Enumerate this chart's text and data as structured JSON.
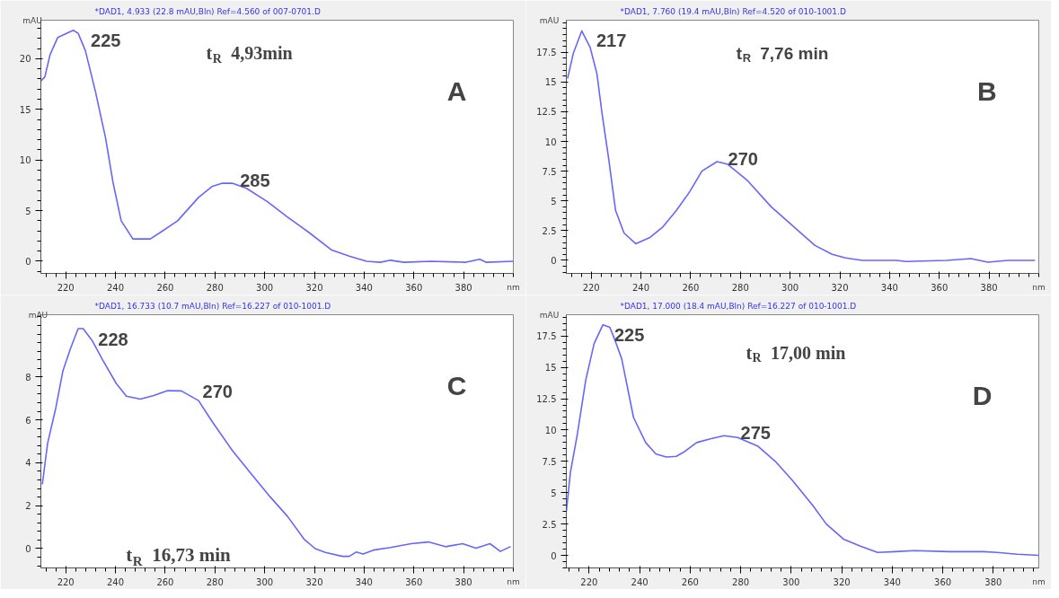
{
  "chart_data": [
    {
      "type": "line",
      "title": "*DAD1, 4.933 (22.8 mAU,Bln) Ref=4.560 of 007-0701.D",
      "xlabel": "nm",
      "ylabel": "mAU",
      "xlim": [
        210,
        400
      ],
      "xticks": [
        220,
        240,
        260,
        280,
        300,
        320,
        340,
        360,
        380
      ],
      "ylim": [
        -1.2,
        23.8
      ],
      "yticks": [
        0,
        5,
        10,
        15,
        20
      ],
      "grid": false,
      "x": [
        210,
        211.6,
        213.7,
        216.8,
        223,
        225,
        227.9,
        232,
        236,
        239,
        242.3,
        247,
        254,
        259.6,
        265,
        273.4,
        279,
        283,
        287,
        292.7,
        301,
        309,
        317.5,
        327,
        334,
        341,
        346.5,
        350.6,
        356,
        367,
        381,
        386.5,
        389,
        400
      ],
      "series": [
        {
          "color": "#6666ff",
          "values": [
            17.8,
            18.2,
            20.4,
            22.1,
            22.8,
            22.5,
            20.8,
            16.7,
            12.2,
            7.8,
            4.0,
            2.2,
            2.2,
            3.1,
            4.0,
            6.3,
            7.4,
            7.7,
            7.7,
            7.2,
            5.9,
            4.4,
            2.9,
            1.1,
            0.5,
            0,
            -0.1,
            0.1,
            -0.1,
            0,
            -0.1,
            0.2,
            -0.1,
            0
          ]
        }
      ],
      "annotations": [
        {
          "text": "225",
          "x": 225,
          "y": 22.8
        },
        {
          "text": "285",
          "x": 285,
          "y": 7.7
        },
        "t$_{R}$ 4,93min",
        "A"
      ]
    },
    {
      "type": "line",
      "title": "*DAD1, 7.760 (19.4 mAU,Bln) Ref=4.520 of 010-1001.D",
      "xlabel": "nm",
      "ylabel": "mAU",
      "xlim": [
        210,
        400
      ],
      "xticks": [
        220,
        240,
        260,
        280,
        300,
        320,
        340,
        360,
        380
      ],
      "ylim": [
        -1.1,
        20.2
      ],
      "yticks": [
        0,
        2.5,
        5,
        7.5,
        10,
        12.5,
        15,
        17.5
      ],
      "grid": false,
      "x": [
        210.5,
        212.8,
        216.2,
        219.6,
        222.3,
        224.4,
        227,
        229.8,
        233.2,
        237.9,
        243.4,
        248.8,
        254.3,
        259.7,
        264.5,
        270.6,
        274.7,
        282.9,
        292.4,
        300.5,
        310,
        316.9,
        322.3,
        329,
        342.7,
        346.8,
        363,
        372.7,
        379.5,
        387.6,
        398.5
      ],
      "series": [
        {
          "color": "#6666ff",
          "values": [
            15.3,
            17.4,
            19.3,
            17.9,
            15.7,
            12.3,
            8.6,
            4.2,
            2.3,
            1.4,
            1.9,
            2.8,
            4.2,
            5.8,
            7.5,
            8.3,
            8.1,
            6.7,
            4.5,
            3.0,
            1.25,
            0.5,
            0.2,
            0,
            0,
            -0.1,
            0,
            0.15,
            -0.15,
            0,
            0
          ]
        }
      ],
      "annotations": [
        {
          "text": "217",
          "x": 217,
          "y": 19.3
        },
        {
          "text": "270",
          "x": 270,
          "y": 8.3
        },
        "t$_{R}$ 7,76 min",
        "B"
      ]
    },
    {
      "type": "line",
      "title": "*DAD1, 16.733 (10.7 mAU,Bln) Ref=16.227 of 010-1001.D",
      "xlabel": "nm",
      "ylabel": "mAU",
      "xlim": [
        210,
        400
      ],
      "xticks": [
        220,
        240,
        260,
        280,
        300,
        320,
        340,
        360,
        380
      ],
      "ylim": [
        -0.9,
        10.9
      ],
      "yticks": [
        0,
        2,
        4,
        6,
        8
      ],
      "grid": false,
      "x": [
        210.6,
        212.7,
        216,
        218.9,
        222,
        225,
        227,
        230.6,
        234.8,
        240.3,
        244.4,
        250,
        255.4,
        261,
        266.5,
        273.4,
        279,
        287,
        294,
        302.3,
        309.2,
        316,
        320.3,
        324.4,
        331.3,
        334,
        336.8,
        339.6,
        343.7,
        350.6,
        358.9,
        365.8,
        372.7,
        379.6,
        385,
        390.6,
        394.8,
        398.9
      ],
      "series": [
        {
          "color": "#6666ff",
          "values": [
            3.0,
            4.9,
            6.55,
            8.3,
            9.35,
            10.25,
            10.25,
            9.7,
            8.8,
            7.7,
            7.1,
            6.97,
            7.13,
            7.36,
            7.35,
            6.9,
            5.9,
            4.57,
            3.57,
            2.4,
            1.5,
            0.42,
            0,
            -0.18,
            -0.36,
            -0.36,
            -0.16,
            -0.25,
            -0.07,
            0.05,
            0.23,
            0.31,
            0.09,
            0.23,
            0.02,
            0.23,
            -0.13,
            0.1
          ]
        }
      ],
      "annotations": [
        {
          "text": "228",
          "x": 228,
          "y": 10.2
        },
        {
          "text": "270",
          "x": 270,
          "y": 7.2
        },
        "t$_{R}$ 16,73 min",
        "C"
      ]
    },
    {
      "type": "line",
      "title": "*DAD1, 17.000 (18.4 mAU,Bln) Ref=16.227 of 010-1001.D",
      "xlabel": "nm",
      "ylabel": "mAU",
      "xlim": [
        211,
        398
      ],
      "xticks": [
        220,
        240,
        260,
        280,
        300,
        320,
        340,
        360,
        380
      ],
      "ylim": [
        -1,
        19.2
      ],
      "yticks": [
        0,
        2.5,
        5,
        7.5,
        10,
        12.5,
        15,
        17.5
      ],
      "grid": false,
      "x": [
        211,
        212.6,
        215.3,
        218.7,
        222,
        225.5,
        228.2,
        230.2,
        232.9,
        237.6,
        242.4,
        246.4,
        250.5,
        254.5,
        257.2,
        262.6,
        268,
        273.4,
        278.8,
        286.9,
        293.7,
        300.4,
        308.5,
        313.9,
        320.7,
        327.4,
        334.2,
        341,
        349,
        362.5,
        376,
        381.5,
        389.5,
        398
      ],
      "series": [
        {
          "color": "#6666ff",
          "values": [
            3.5,
            6.6,
            9.6,
            14.0,
            16.9,
            18.4,
            18.2,
            17.2,
            15.7,
            11.0,
            9.0,
            8.1,
            7.85,
            7.9,
            8.2,
            9.0,
            9.3,
            9.55,
            9.4,
            8.7,
            7.5,
            6.0,
            4.0,
            2.5,
            1.3,
            0.74,
            0.24,
            0.3,
            0.38,
            0.3,
            0.3,
            0.24,
            0.09,
            0
          ]
        }
      ],
      "annotations": [
        {
          "text": "225",
          "x": 225,
          "y": 18.4
        },
        {
          "text": "275",
          "x": 275,
          "y": 9.55
        },
        "t$_{R}$ 17,00 min",
        "D"
      ]
    }
  ]
}
